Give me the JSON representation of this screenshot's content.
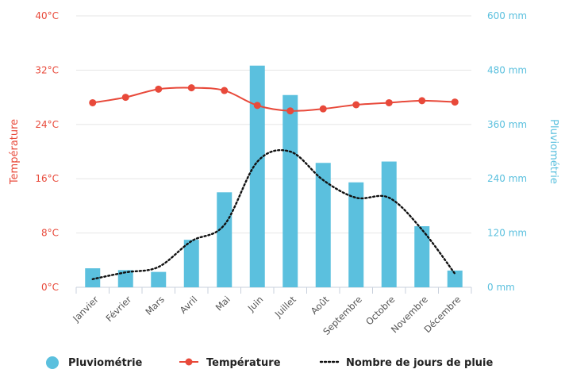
{
  "chart_data": {
    "type": "bar-line-combo",
    "categories": [
      "Janvier",
      "Février",
      "Mars",
      "Avril",
      "Mai",
      "Juin",
      "Juillet",
      "Août",
      "Septembre",
      "Octobre",
      "Novembre",
      "Décembre"
    ],
    "series": [
      {
        "name": "Pluviométrie",
        "type": "bar",
        "axis": "right",
        "color": "#5bc0de",
        "values": [
          42,
          38,
          34,
          105,
          210,
          490,
          425,
          275,
          232,
          278,
          135,
          37
        ]
      },
      {
        "name": "Température",
        "type": "line",
        "axis": "left",
        "color": "#e8493a",
        "values": [
          27.2,
          28.0,
          29.2,
          29.4,
          29.0,
          26.8,
          26.0,
          26.3,
          26.9,
          27.2,
          27.5,
          27.3
        ]
      },
      {
        "name": "Nombre de jours de pluie",
        "type": "dotted-line",
        "axis": "left",
        "color": "#111111",
        "values": [
          1.2,
          2.2,
          3.0,
          6.8,
          9.2,
          18.5,
          20.0,
          15.8,
          13.2,
          13.2,
          8.5,
          2.0
        ]
      }
    ],
    "y_left": {
      "label": "Température",
      "ticks": [
        "0°C",
        "8°C",
        "16°C",
        "24°C",
        "32°C",
        "40°C"
      ],
      "ylim": [
        0,
        40
      ]
    },
    "y_right": {
      "label": "Pluviométrie",
      "ticks": [
        "0 mm",
        "120 mm",
        "240 mm",
        "360 mm",
        "480 mm",
        "600 mm"
      ],
      "ylim": [
        0,
        600
      ]
    },
    "grid": true,
    "legend": {
      "position": "bottom",
      "items": [
        {
          "label": "Pluviométrie",
          "symbol": "circle"
        },
        {
          "label": "Température",
          "symbol": "line-dot"
        },
        {
          "label": "Nombre de jours de pluie",
          "symbol": "dotted"
        }
      ]
    }
  }
}
